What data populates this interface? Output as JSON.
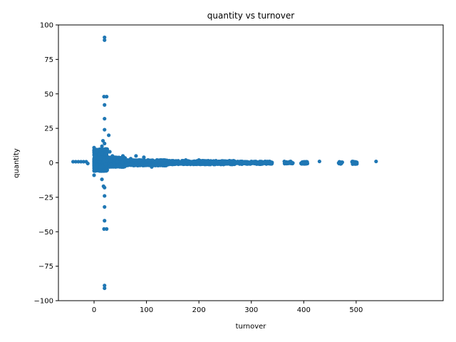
{
  "chart_data": {
    "type": "scatter",
    "title": "quantity vs turnover",
    "xlabel": "turnover",
    "ylabel": "quantity",
    "xlim": [
      -68,
      666
    ],
    "ylim": [
      -100,
      100
    ],
    "x_ticks": [
      0,
      100,
      200,
      300,
      400,
      500
    ],
    "y_ticks": [
      -100,
      -75,
      -50,
      -25,
      0,
      25,
      50,
      75,
      100
    ],
    "marker_color": "#1f77b4",
    "grid": false,
    "legend": "none",
    "points": [
      {
        "x": -40,
        "y": 0.8
      },
      {
        "x": -35,
        "y": 0.8
      },
      {
        "x": -30,
        "y": 0.8
      },
      {
        "x": -25,
        "y": 0.8
      },
      {
        "x": -20,
        "y": 0.8
      },
      {
        "x": -15,
        "y": 0.8
      },
      {
        "x": -12,
        "y": -0.5
      },
      {
        "x": 0,
        "y": -9
      },
      {
        "x": 0,
        "y": 11
      },
      {
        "x": 2,
        "y": 5
      },
      {
        "x": 3,
        "y": -4
      },
      {
        "x": 5,
        "y": 8
      },
      {
        "x": 5,
        "y": -2
      },
      {
        "x": 8,
        "y": 3
      },
      {
        "x": 10,
        "y": 6
      },
      {
        "x": 12,
        "y": -3
      },
      {
        "x": 15,
        "y": 12
      },
      {
        "x": 15,
        "y": -12
      },
      {
        "x": 17,
        "y": 16
      },
      {
        "x": 18,
        "y": -17
      },
      {
        "x": 19,
        "y": 48
      },
      {
        "x": 19,
        "y": -48
      },
      {
        "x": 20,
        "y": 14
      },
      {
        "x": 20,
        "y": -18
      },
      {
        "x": 20,
        "y": 91
      },
      {
        "x": 20,
        "y": 89
      },
      {
        "x": 20,
        "y": -91
      },
      {
        "x": 20,
        "y": -89
      },
      {
        "x": 20,
        "y": 42
      },
      {
        "x": 20,
        "y": -42
      },
      {
        "x": 20,
        "y": 32
      },
      {
        "x": 20,
        "y": -32
      },
      {
        "x": 20,
        "y": 24
      },
      {
        "x": 20,
        "y": -24
      },
      {
        "x": 22,
        "y": 10
      },
      {
        "x": 24,
        "y": 48
      },
      {
        "x": 24,
        "y": -48
      },
      {
        "x": 28,
        "y": 20
      },
      {
        "x": 30,
        "y": 8
      },
      {
        "x": 30,
        "y": -3
      },
      {
        "x": 35,
        "y": 5
      },
      {
        "x": 40,
        "y": 4
      },
      {
        "x": 45,
        "y": -2
      },
      {
        "x": 50,
        "y": 3
      },
      {
        "x": 55,
        "y": 5
      },
      {
        "x": 60,
        "y": -2
      },
      {
        "x": 70,
        "y": 3
      },
      {
        "x": 80,
        "y": 5
      },
      {
        "x": 95,
        "y": 4
      },
      {
        "x": 110,
        "y": -3
      },
      {
        "x": 120,
        "y": 2
      },
      {
        "x": 135,
        "y": 2
      },
      {
        "x": 150,
        "y": 1.5
      },
      {
        "x": 175,
        "y": 2
      },
      {
        "x": 200,
        "y": 2
      },
      {
        "x": 215,
        "y": 1
      },
      {
        "x": 240,
        "y": 1
      },
      {
        "x": 268,
        "y": -1
      },
      {
        "x": 280,
        "y": 1
      },
      {
        "x": 300,
        "y": 1
      },
      {
        "x": 310,
        "y": 0
      },
      {
        "x": 325,
        "y": 0
      },
      {
        "x": 335,
        "y": 1
      },
      {
        "x": 363,
        "y": 1
      },
      {
        "x": 375,
        "y": 1
      },
      {
        "x": 400,
        "y": 0
      },
      {
        "x": 405,
        "y": 0
      },
      {
        "x": 430,
        "y": 1
      },
      {
        "x": 470,
        "y": 0
      },
      {
        "x": 495,
        "y": 0
      },
      {
        "x": 500,
        "y": 0
      },
      {
        "x": 538,
        "y": 1
      }
    ],
    "clusters": [
      {
        "x_from": 0,
        "x_to": 25,
        "y_from": -6,
        "y_to": 10,
        "n": 700
      },
      {
        "x_from": 0,
        "x_to": 60,
        "y_from": -3,
        "y_to": 4,
        "n": 900
      },
      {
        "x_from": 60,
        "x_to": 140,
        "y_from": -2,
        "y_to": 2,
        "n": 500
      },
      {
        "x_from": 140,
        "x_to": 270,
        "y_from": -1.2,
        "y_to": 1.5,
        "n": 500
      },
      {
        "x_from": 270,
        "x_to": 340,
        "y_from": -1,
        "y_to": 1,
        "n": 150
      },
      {
        "x_from": 360,
        "x_to": 380,
        "y_from": -0.6,
        "y_to": 0.8,
        "n": 25
      },
      {
        "x_from": 395,
        "x_to": 408,
        "y_from": -0.8,
        "y_to": 0.8,
        "n": 25
      },
      {
        "x_from": 466,
        "x_to": 474,
        "y_from": -0.8,
        "y_to": 0.8,
        "n": 12
      },
      {
        "x_from": 492,
        "x_to": 502,
        "y_from": -1,
        "y_to": 1,
        "n": 30
      }
    ]
  }
}
